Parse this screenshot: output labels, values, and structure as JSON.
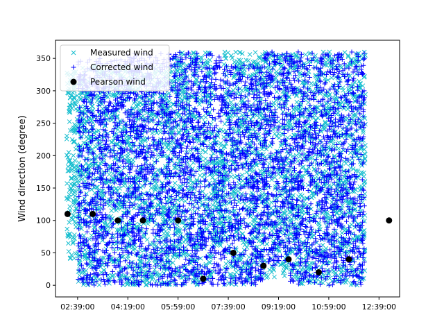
{
  "chart_data": {
    "type": "scatter",
    "title": "",
    "xlabel": "",
    "ylabel": "Wind direction (degree)",
    "x_ticks": [
      "02:39:00",
      "04:19:00",
      "05:59:00",
      "07:39:00",
      "09:19:00",
      "10:59:00",
      "12:39:00"
    ],
    "y_ticks": [
      0,
      50,
      100,
      150,
      200,
      250,
      300,
      350
    ],
    "xlim": [
      "01:55:00",
      "13:20:00"
    ],
    "ylim": [
      -18,
      378
    ],
    "legend_position": "upper-left",
    "grid": false,
    "colors": {
      "measured": "#17becf",
      "corrected": "#0000ff",
      "pearson": "#000000"
    },
    "series": [
      {
        "name": "Measured wind",
        "marker": "x",
        "color": "#17becf",
        "dense_segments": [
          {
            "from": "02:17:00",
            "to": "02:40:00",
            "y_range": [
              40,
              330
            ]
          },
          {
            "from": "02:40:00",
            "to": "05:45:00",
            "y_range": [
              0,
              340
            ]
          },
          {
            "from": "05:45:00",
            "to": "07:10:00",
            "y_range": [
              0,
              360
            ]
          },
          {
            "from": "07:10:00",
            "to": "07:30:00",
            "y_range": [
              60,
              240
            ]
          },
          {
            "from": "07:30:00",
            "to": "08:30:00",
            "y_range": [
              0,
              360
            ]
          },
          {
            "from": "08:30:00",
            "to": "09:35:00",
            "y_range": [
              10,
              360
            ]
          },
          {
            "from": "09:35:00",
            "to": "10:30:00",
            "y_range": [
              0,
              360
            ]
          },
          {
            "from": "10:30:00",
            "to": "12:12:00",
            "y_range": [
              0,
              360
            ]
          }
        ]
      },
      {
        "name": "Corrected wind",
        "marker": "+",
        "color": "#0000ff",
        "dense_segments": [
          {
            "from": "02:40:00",
            "to": "04:10:00",
            "y_range": [
              0,
              350
            ]
          },
          {
            "from": "04:10:00",
            "to": "05:40:00",
            "y_range": [
              0,
              360
            ]
          },
          {
            "from": "05:40:00",
            "to": "07:25:00",
            "y_range": [
              0,
              360
            ]
          },
          {
            "from": "07:25:00",
            "to": "08:50:00",
            "y_range": [
              0,
              340
            ]
          },
          {
            "from": "08:50:00",
            "to": "09:40:00",
            "y_range": [
              30,
              360
            ]
          },
          {
            "from": "09:40:00",
            "to": "10:30:00",
            "y_range": [
              0,
              360
            ]
          },
          {
            "from": "10:30:00",
            "to": "12:10:00",
            "y_range": [
              0,
              360
            ]
          }
        ]
      },
      {
        "name": "Pearson wind",
        "marker": "o",
        "color": "#000000",
        "points": [
          {
            "x": "02:19:00",
            "y": 110
          },
          {
            "x": "03:09:00",
            "y": 110
          },
          {
            "x": "03:59:00",
            "y": 100
          },
          {
            "x": "04:49:00",
            "y": 100
          },
          {
            "x": "05:59:00",
            "y": 100
          },
          {
            "x": "06:49:00",
            "y": 10
          },
          {
            "x": "07:49:00",
            "y": 50
          },
          {
            "x": "08:49:00",
            "y": 30
          },
          {
            "x": "09:39:00",
            "y": 40
          },
          {
            "x": "10:39:00",
            "y": 20
          },
          {
            "x": "11:39:00",
            "y": 40
          },
          {
            "x": "12:59:00",
            "y": 100
          }
        ]
      }
    ]
  }
}
